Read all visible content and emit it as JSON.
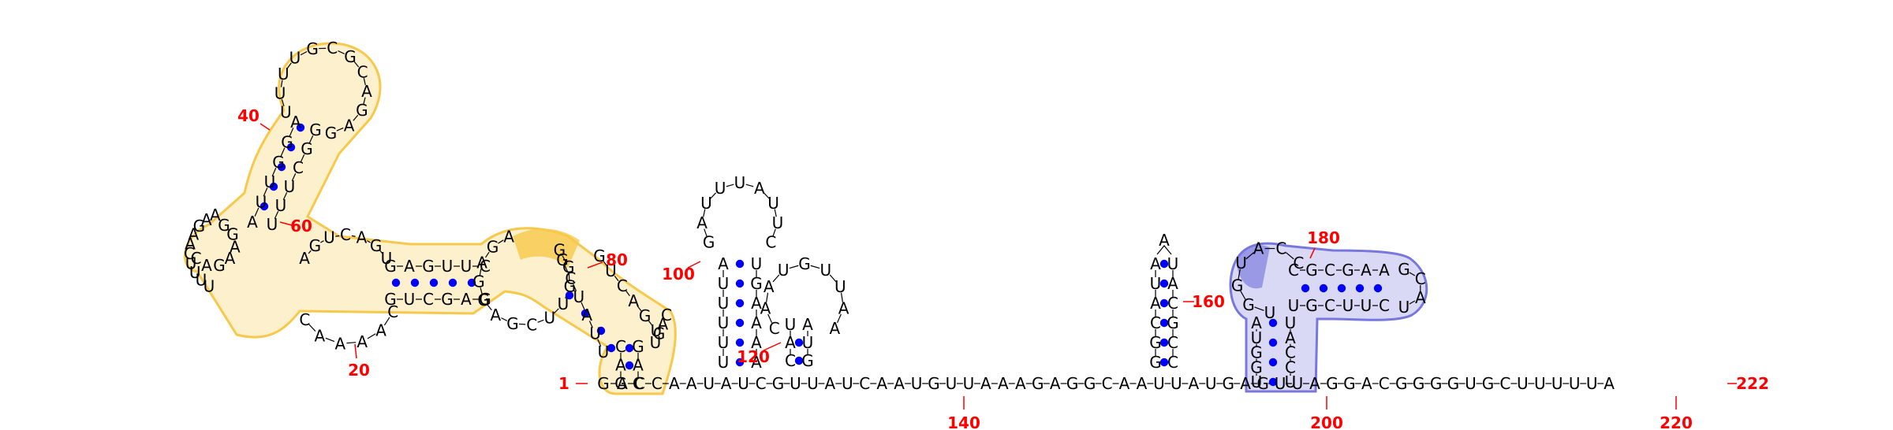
{
  "diagram": {
    "type": "rna-secondary-structure",
    "label_color": "#ff0000",
    "pair_color": "#0000ff",
    "highlight_yellow": "#f8c84a",
    "highlight_blue": "#7777dd",
    "backbone_color": "#000000"
  },
  "baseline": {
    "seq": "GACCAAUAUCGUUAUCAAUGUUAAAGAGGCAAUUAUGAGUUAGGACGGGGUGCUUUUUA",
    "start_label": "1",
    "end_label": "222"
  },
  "number_labels": [
    {
      "text": "1",
      "name": "label-1"
    },
    {
      "text": "20",
      "name": "label-20"
    },
    {
      "text": "40",
      "name": "label-40"
    },
    {
      "text": "60",
      "name": "label-60"
    },
    {
      "text": "80",
      "name": "label-80"
    },
    {
      "text": "100",
      "name": "label-100"
    },
    {
      "text": "120",
      "name": "label-120"
    },
    {
      "text": "140",
      "name": "label-140"
    },
    {
      "text": "160",
      "name": "label-160"
    },
    {
      "text": "180",
      "name": "label-180"
    },
    {
      "text": "200",
      "name": "label-200"
    },
    {
      "text": "220",
      "name": "label-220"
    },
    {
      "text": "222",
      "name": "label-222"
    }
  ],
  "structures": {
    "left_domain": {
      "stem_a_left": "CUCGAC",
      "stem_a_right": "GAGCUG",
      "hairpin_1": "UUUGCGCAGA",
      "upper_helix_5": "UACGGUU",
      "upper_helix_3": "UCCUGA",
      "multiloop_left": "AAGAACUUUU",
      "inner_loop": "AGGUG",
      "middle_helix_top": "GAGUUC",
      "middle_helix_bottom": "GUCGAG",
      "bottom_loop": "CAAAAC",
      "right_loop": "GGGUUCGAGGAGA",
      "right_tail": "UGAC"
    },
    "hairpin_100": {
      "stem_5": "UUUUUA",
      "stem_3": "AAAAGU",
      "loop": "GAUUUAUUC"
    },
    "hairpin_120": {
      "stem_5": "CAU",
      "stem_3": "GUA",
      "loop": "CAAUGUUAA"
    },
    "hairpin_160": {
      "stem_5": "GGCAUA",
      "stem_3": "CCGCAU",
      "loop": "A"
    },
    "hairpin_180": {
      "stem_5": "UGGUA",
      "stem_3": "UCCAU",
      "inner_5": "CGCGAA",
      "inner_3": "UGCUUC",
      "loop_left": "UACCG",
      "loop_right": "GCAU"
    }
  }
}
